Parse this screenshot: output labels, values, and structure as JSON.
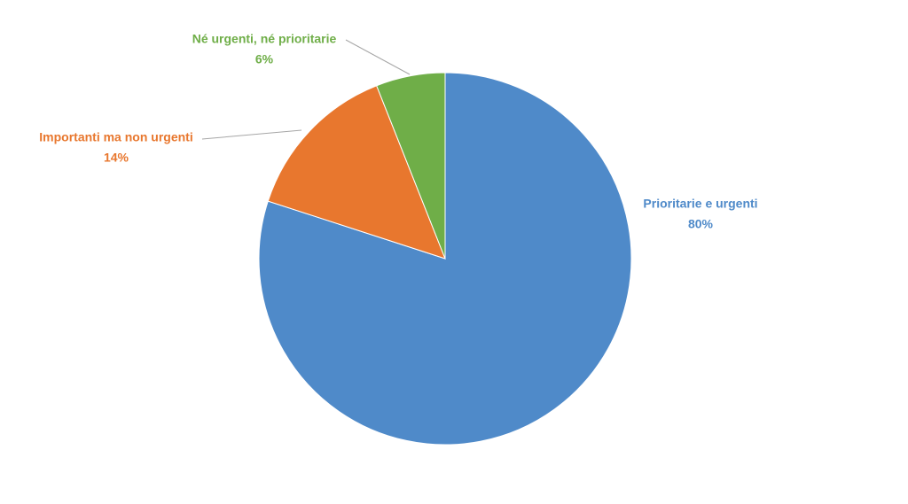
{
  "chart_data": {
    "type": "pie",
    "categories": [
      "Prioritarie e urgenti",
      "Importanti ma non urgenti",
      "Né urgenti, né prioritarie"
    ],
    "values": [
      80,
      14,
      6
    ],
    "value_labels": [
      "80%",
      "14%",
      "6%"
    ],
    "colors": [
      "#4f8ac9",
      "#e8772e",
      "#6fae48"
    ]
  }
}
